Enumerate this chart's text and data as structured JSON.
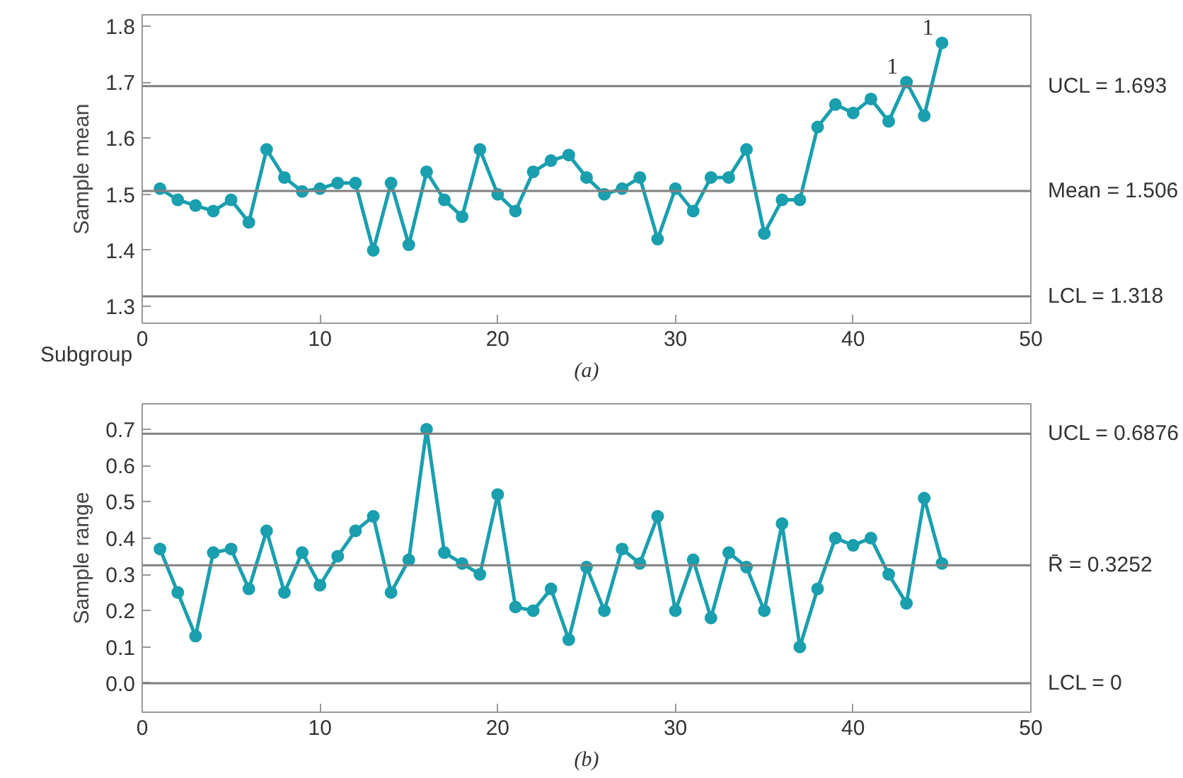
{
  "chart_data": [
    {
      "type": "line",
      "xlabel": "Subgroup",
      "ylabel": "Sample mean",
      "x": [
        1,
        2,
        3,
        4,
        5,
        6,
        7,
        8,
        9,
        10,
        11,
        12,
        13,
        14,
        15,
        16,
        17,
        18,
        19,
        20,
        21,
        22,
        23,
        24,
        25,
        26,
        27,
        28,
        29,
        30,
        31,
        32,
        33,
        34,
        35,
        36,
        37,
        38,
        39,
        40,
        41,
        42,
        43,
        44,
        45
      ],
      "series": [
        {
          "color": "#1a9fae",
          "values": [
            1.51,
            1.49,
            1.48,
            1.47,
            1.49,
            1.45,
            1.58,
            1.53,
            1.505,
            1.51,
            1.52,
            1.52,
            1.4,
            1.52,
            1.41,
            1.54,
            1.49,
            1.46,
            1.58,
            1.5,
            1.47,
            1.54,
            1.56,
            1.57,
            1.53,
            1.5,
            1.51,
            1.53,
            1.42,
            1.51,
            1.47,
            1.53,
            1.53,
            1.58,
            1.43,
            1.49,
            1.49,
            1.62,
            1.66,
            1.645,
            1.67,
            1.63,
            1.7,
            1.64,
            1.77
          ]
        }
      ],
      "xlim": [
        0,
        50
      ],
      "xticks": [
        0,
        10,
        20,
        30,
        40,
        50
      ],
      "ylim": [
        1.27,
        1.82
      ],
      "yticks": [
        1.3,
        1.4,
        1.5,
        1.6,
        1.7,
        1.8
      ],
      "marker": "circle",
      "line_style": "solid",
      "ref_lines": [
        {
          "axis": "y",
          "value": 1.693,
          "label": "UCL = 1.693",
          "color": "#808080"
        },
        {
          "axis": "y",
          "value": 1.506,
          "label": "Mean = 1.506",
          "color": "#808080"
        },
        {
          "axis": "y",
          "value": 1.318,
          "label": "LCL = 1.318",
          "color": "#808080"
        }
      ],
      "annotations": [
        {
          "text": "1",
          "x": 43,
          "y": 1.7
        },
        {
          "text": "1",
          "x": 45,
          "y": 1.77
        },
        "(a)"
      ]
    },
    {
      "type": "line",
      "ylabel": "Sample range",
      "x": [
        1,
        2,
        3,
        4,
        5,
        6,
        7,
        8,
        9,
        10,
        11,
        12,
        13,
        14,
        15,
        16,
        17,
        18,
        19,
        20,
        21,
        22,
        23,
        24,
        25,
        26,
        27,
        28,
        29,
        30,
        31,
        32,
        33,
        34,
        35,
        36,
        37,
        38,
        39,
        40,
        41,
        42,
        43,
        44,
        45
      ],
      "series": [
        {
          "color": "#1a9fae",
          "values": [
            0.37,
            0.25,
            0.13,
            0.36,
            0.37,
            0.26,
            0.42,
            0.25,
            0.36,
            0.27,
            0.35,
            0.42,
            0.46,
            0.25,
            0.34,
            0.7,
            0.36,
            0.33,
            0.3,
            0.52,
            0.21,
            0.2,
            0.26,
            0.12,
            0.32,
            0.2,
            0.37,
            0.33,
            0.46,
            0.2,
            0.34,
            0.18,
            0.36,
            0.32,
            0.2,
            0.44,
            0.1,
            0.26,
            0.4,
            0.38,
            0.4,
            0.3,
            0.22,
            0.51,
            0.33
          ]
        }
      ],
      "xlim": [
        0,
        50
      ],
      "xticks": [
        0,
        10,
        20,
        30,
        40,
        50
      ],
      "ylim": [
        -0.08,
        0.77
      ],
      "yticks": [
        {
          "value": 0,
          "label": "0.0"
        },
        {
          "value": 0.1,
          "label": "0.1"
        },
        {
          "value": 0.2,
          "label": "0.2"
        },
        {
          "value": 0.3,
          "label": "0.3"
        },
        {
          "value": 0.4,
          "label": "0.4"
        },
        {
          "value": 0.5,
          "label": "0.5"
        },
        {
          "value": 0.6,
          "label": "0.6"
        },
        {
          "value": 0.7,
          "label": "0.7"
        }
      ],
      "marker": "circle",
      "line_style": "solid",
      "ref_lines": [
        {
          "axis": "y",
          "value": 0.6876,
          "label": "UCL = 0.6876",
          "color": "#808080"
        },
        {
          "axis": "y",
          "value": 0.3252,
          "label": "R̄ = 0.3252",
          "color": "#808080"
        },
        {
          "axis": "y",
          "value": 0,
          "label": "LCL = 0",
          "color": "#808080"
        }
      ],
      "annotations": [
        "(b)"
      ]
    }
  ]
}
